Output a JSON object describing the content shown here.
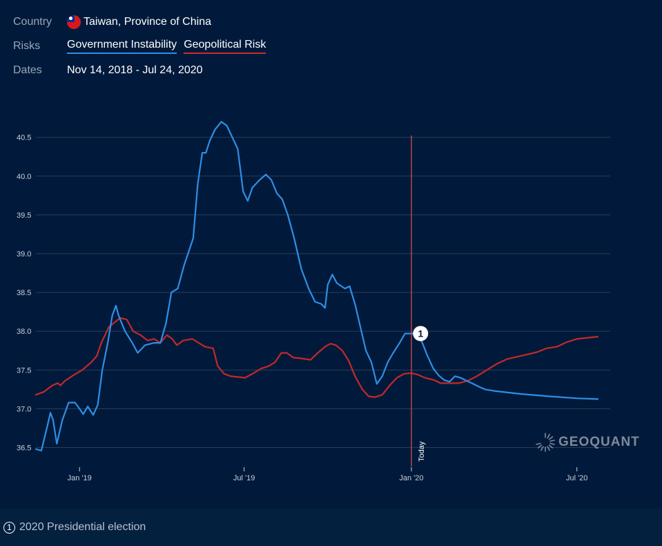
{
  "filters": {
    "country_label": "Country",
    "country_value": "Taiwan, Province of China",
    "risks_label": "Risks",
    "risks": [
      "Government Instability",
      "Geopolitical Risk"
    ],
    "dates_label": "Dates",
    "dates_value": "Nov 14, 2018 - Jul 24, 2020"
  },
  "footer": {
    "marker": "1",
    "note": "2020 Presidential election"
  },
  "brand": "GEOQUANT",
  "colors": {
    "background": "#011a3b",
    "government_instability": "#2f8fe6",
    "geopolitical_risk": "#c62828",
    "today_line": "#d94848",
    "grid": "#2a3d5a"
  },
  "chart_data": {
    "type": "line",
    "title": "",
    "xlabel": "",
    "ylabel": "",
    "x_range": [
      "2018-11-14",
      "2020-07-24"
    ],
    "ylim": [
      36.3,
      40.8
    ],
    "y_ticks": [
      36.5,
      37.0,
      37.5,
      38.0,
      38.5,
      39.0,
      39.5,
      40.0,
      40.5
    ],
    "x_ticks": [
      {
        "date": "2019-01-01",
        "label": "Jan '19"
      },
      {
        "date": "2019-07-01",
        "label": "Jul '19"
      },
      {
        "date": "2020-01-01",
        "label": "Jan '20"
      },
      {
        "date": "2020-07-01",
        "label": "Jul '20"
      }
    ],
    "grid": true,
    "today": {
      "date": "2020-01-01",
      "label": "Today"
    },
    "annotations": [
      {
        "date": "2020-01-05",
        "value": 37.97,
        "label": "1"
      }
    ],
    "series": [
      {
        "name": "Government Instability",
        "points": [
          [
            "2018-11-14",
            36.48
          ],
          [
            "2018-11-20",
            36.46
          ],
          [
            "2018-11-25",
            36.7
          ],
          [
            "2018-11-30",
            36.95
          ],
          [
            "2018-12-03",
            36.85
          ],
          [
            "2018-12-07",
            36.55
          ],
          [
            "2018-12-13",
            36.85
          ],
          [
            "2018-12-20",
            37.08
          ],
          [
            "2018-12-27",
            37.08
          ],
          [
            "2019-01-01",
            37.0
          ],
          [
            "2019-01-05",
            36.93
          ],
          [
            "2019-01-10",
            37.03
          ],
          [
            "2019-01-16",
            36.92
          ],
          [
            "2019-01-21",
            37.05
          ],
          [
            "2019-01-26",
            37.5
          ],
          [
            "2019-02-01",
            37.85
          ],
          [
            "2019-02-06",
            38.2
          ],
          [
            "2019-02-10",
            38.33
          ],
          [
            "2019-02-13",
            38.2
          ],
          [
            "2019-02-20",
            38.0
          ],
          [
            "2019-02-28",
            37.85
          ],
          [
            "2019-03-06",
            37.72
          ],
          [
            "2019-03-14",
            37.82
          ],
          [
            "2019-03-24",
            37.85
          ],
          [
            "2019-03-31",
            37.85
          ],
          [
            "2019-04-06",
            38.1
          ],
          [
            "2019-04-12",
            38.5
          ],
          [
            "2019-04-19",
            38.55
          ],
          [
            "2019-04-26",
            38.85
          ],
          [
            "2019-05-06",
            39.2
          ],
          [
            "2019-05-11",
            39.9
          ],
          [
            "2019-05-16",
            40.3
          ],
          [
            "2019-05-20",
            40.3
          ],
          [
            "2019-05-24",
            40.45
          ],
          [
            "2019-05-30",
            40.6
          ],
          [
            "2019-06-06",
            40.7
          ],
          [
            "2019-06-12",
            40.65
          ],
          [
            "2019-06-18",
            40.5
          ],
          [
            "2019-06-24",
            40.35
          ],
          [
            "2019-06-30",
            39.8
          ],
          [
            "2019-07-05",
            39.68
          ],
          [
            "2019-07-10",
            39.85
          ],
          [
            "2019-07-18",
            39.95
          ],
          [
            "2019-07-25",
            40.02
          ],
          [
            "2019-07-31",
            39.95
          ],
          [
            "2019-08-06",
            39.78
          ],
          [
            "2019-08-12",
            39.7
          ],
          [
            "2019-08-18",
            39.5
          ],
          [
            "2019-08-25",
            39.2
          ],
          [
            "2019-09-02",
            38.8
          ],
          [
            "2019-09-10",
            38.55
          ],
          [
            "2019-09-17",
            38.38
          ],
          [
            "2019-09-24",
            38.35
          ],
          [
            "2019-09-28",
            38.3
          ],
          [
            "2019-10-01",
            38.6
          ],
          [
            "2019-10-06",
            38.73
          ],
          [
            "2019-10-11",
            38.62
          ],
          [
            "2019-10-16",
            38.58
          ],
          [
            "2019-10-20",
            38.55
          ],
          [
            "2019-10-25",
            38.58
          ],
          [
            "2019-10-31",
            38.35
          ],
          [
            "2019-11-06",
            38.05
          ],
          [
            "2019-11-12",
            37.75
          ],
          [
            "2019-11-18",
            37.6
          ],
          [
            "2019-11-24",
            37.32
          ],
          [
            "2019-11-30",
            37.42
          ],
          [
            "2019-12-06",
            37.6
          ],
          [
            "2019-12-12",
            37.72
          ],
          [
            "2019-12-19",
            37.85
          ],
          [
            "2019-12-25",
            37.97
          ],
          [
            "2020-01-05",
            37.97
          ],
          [
            "2020-01-12",
            37.88
          ],
          [
            "2020-01-18",
            37.7
          ],
          [
            "2020-01-25",
            37.52
          ],
          [
            "2020-01-31",
            37.43
          ],
          [
            "2020-02-06",
            37.37
          ],
          [
            "2020-02-12",
            37.35
          ],
          [
            "2020-02-18",
            37.42
          ],
          [
            "2020-02-24",
            37.4
          ],
          [
            "2020-03-02",
            37.36
          ],
          [
            "2020-03-09",
            37.32
          ],
          [
            "2020-03-16",
            37.28
          ],
          [
            "2020-03-22",
            37.25
          ],
          [
            "2020-04-01",
            37.23
          ],
          [
            "2020-05-01",
            37.19
          ],
          [
            "2020-06-01",
            37.16
          ],
          [
            "2020-07-01",
            37.135
          ],
          [
            "2020-07-24",
            37.125
          ]
        ]
      },
      {
        "name": "Geopolitical Risk",
        "points": [
          [
            "2018-11-14",
            37.18
          ],
          [
            "2018-11-23",
            37.22
          ],
          [
            "2018-12-02",
            37.3
          ],
          [
            "2018-12-08",
            37.33
          ],
          [
            "2018-12-11",
            37.3
          ],
          [
            "2018-12-16",
            37.36
          ],
          [
            "2018-12-25",
            37.43
          ],
          [
            "2019-01-04",
            37.5
          ],
          [
            "2019-01-14",
            37.6
          ],
          [
            "2019-01-20",
            37.68
          ],
          [
            "2019-01-25",
            37.85
          ],
          [
            "2019-02-02",
            38.05
          ],
          [
            "2019-02-09",
            38.12
          ],
          [
            "2019-02-15",
            38.17
          ],
          [
            "2019-02-22",
            38.15
          ],
          [
            "2019-03-01",
            38.0
          ],
          [
            "2019-03-09",
            37.95
          ],
          [
            "2019-03-17",
            37.88
          ],
          [
            "2019-03-24",
            37.9
          ],
          [
            "2019-03-31",
            37.85
          ],
          [
            "2019-04-07",
            37.95
          ],
          [
            "2019-04-13",
            37.9
          ],
          [
            "2019-04-18",
            37.82
          ],
          [
            "2019-04-25",
            37.88
          ],
          [
            "2019-05-05",
            37.9
          ],
          [
            "2019-05-12",
            37.85
          ],
          [
            "2019-05-19",
            37.8
          ],
          [
            "2019-05-28",
            37.78
          ],
          [
            "2019-06-02",
            37.55
          ],
          [
            "2019-06-09",
            37.45
          ],
          [
            "2019-06-16",
            37.42
          ],
          [
            "2019-06-24",
            37.41
          ],
          [
            "2019-07-02",
            37.4
          ],
          [
            "2019-07-10",
            37.45
          ],
          [
            "2019-07-20",
            37.52
          ],
          [
            "2019-07-28",
            37.55
          ],
          [
            "2019-08-04",
            37.6
          ],
          [
            "2019-08-11",
            37.72
          ],
          [
            "2019-08-17",
            37.72
          ],
          [
            "2019-08-24",
            37.66
          ],
          [
            "2019-09-02",
            37.65
          ],
          [
            "2019-09-12",
            37.63
          ],
          [
            "2019-09-20",
            37.72
          ],
          [
            "2019-09-28",
            37.8
          ],
          [
            "2019-10-04",
            37.84
          ],
          [
            "2019-10-10",
            37.82
          ],
          [
            "2019-10-17",
            37.75
          ],
          [
            "2019-10-24",
            37.62
          ],
          [
            "2019-10-31",
            37.42
          ],
          [
            "2019-11-08",
            37.25
          ],
          [
            "2019-11-15",
            37.16
          ],
          [
            "2019-11-22",
            37.15
          ],
          [
            "2019-11-30",
            37.18
          ],
          [
            "2019-12-08",
            37.3
          ],
          [
            "2019-12-16",
            37.4
          ],
          [
            "2019-12-24",
            37.45
          ],
          [
            "2020-01-01",
            37.46
          ],
          [
            "2020-01-08",
            37.44
          ],
          [
            "2020-01-16",
            37.4
          ],
          [
            "2020-01-26",
            37.37
          ],
          [
            "2020-02-02",
            37.33
          ],
          [
            "2020-02-12",
            37.33
          ],
          [
            "2020-02-22",
            37.33
          ],
          [
            "2020-03-03",
            37.36
          ],
          [
            "2020-03-13",
            37.42
          ],
          [
            "2020-03-24",
            37.5
          ],
          [
            "2020-04-04",
            37.58
          ],
          [
            "2020-04-15",
            37.64
          ],
          [
            "2020-04-26",
            37.67
          ],
          [
            "2020-05-07",
            37.7
          ],
          [
            "2020-05-18",
            37.73
          ],
          [
            "2020-05-29",
            37.78
          ],
          [
            "2020-06-09",
            37.8
          ],
          [
            "2020-06-20",
            37.86
          ],
          [
            "2020-07-01",
            37.9
          ],
          [
            "2020-07-24",
            37.93
          ]
        ]
      }
    ]
  }
}
